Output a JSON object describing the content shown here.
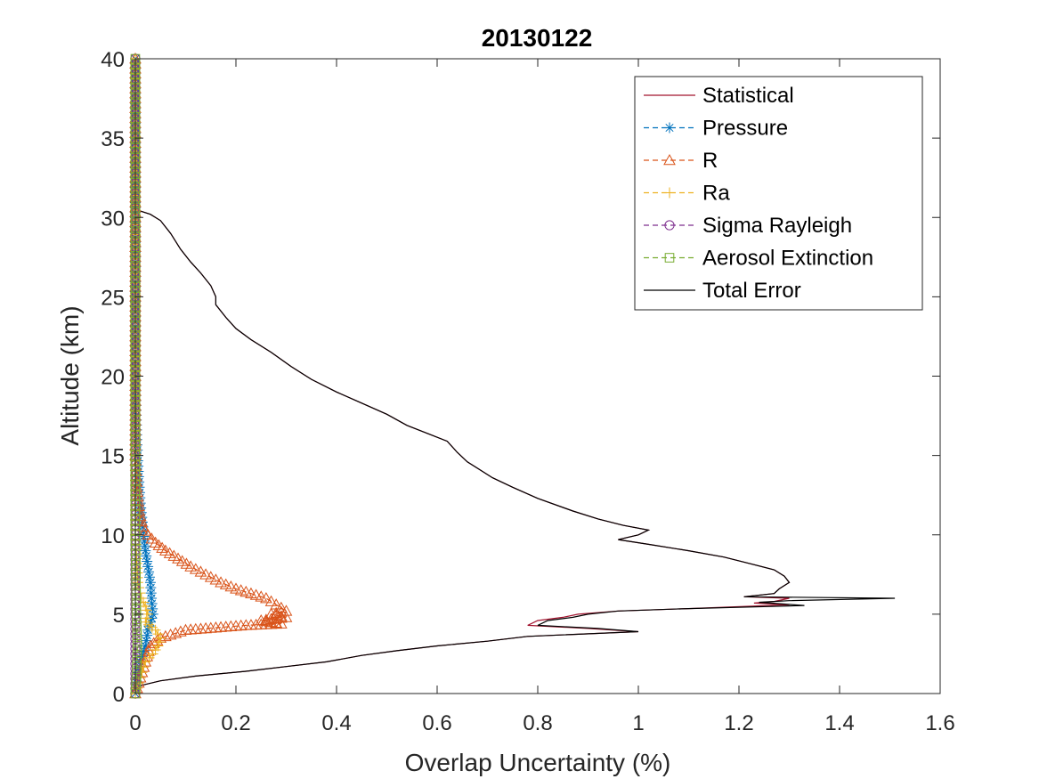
{
  "chart_data": {
    "type": "line",
    "title": "20130122",
    "xlabel": "Overlap Uncertainty (%)",
    "ylabel": "Altitude (km)",
    "xlim": [
      0,
      1.6
    ],
    "ylim": [
      0,
      40
    ],
    "xticks": [
      0,
      0.2,
      0.4,
      0.6,
      0.8,
      1,
      1.2,
      1.4,
      1.6
    ],
    "xtick_labels": [
      "0",
      "0.2",
      "0.4",
      "0.6",
      "0.8",
      "1",
      "1.2",
      "1.4",
      "1.6"
    ],
    "yticks": [
      0,
      5,
      10,
      15,
      20,
      25,
      30,
      35,
      40
    ],
    "ytick_labels": [
      "0",
      "5",
      "10",
      "15",
      "20",
      "25",
      "30",
      "35",
      "40"
    ],
    "grid": false,
    "legend_position": "top-right",
    "series": [
      {
        "name": "Statistical",
        "color": "#A2142F",
        "style": "solid",
        "marker": "none",
        "points": [
          [
            0,
            40
          ],
          [
            0,
            30.5
          ],
          [
            0.01,
            30.4
          ],
          [
            0.03,
            30.2
          ],
          [
            0.05,
            29.8
          ],
          [
            0.07,
            29
          ],
          [
            0.09,
            28
          ],
          [
            0.11,
            27.2
          ],
          [
            0.13,
            26.5
          ],
          [
            0.15,
            25.7
          ],
          [
            0.16,
            25
          ],
          [
            0.16,
            24.5
          ],
          [
            0.18,
            23.7
          ],
          [
            0.2,
            23
          ],
          [
            0.23,
            22.3
          ],
          [
            0.27,
            21.5
          ],
          [
            0.31,
            20.6
          ],
          [
            0.35,
            19.8
          ],
          [
            0.4,
            19
          ],
          [
            0.45,
            18.3
          ],
          [
            0.5,
            17.6
          ],
          [
            0.54,
            16.9
          ],
          [
            0.58,
            16.4
          ],
          [
            0.62,
            15.9
          ],
          [
            0.64,
            15.2
          ],
          [
            0.66,
            14.6
          ],
          [
            0.68,
            14.2
          ],
          [
            0.71,
            13.6
          ],
          [
            0.75,
            13
          ],
          [
            0.8,
            12.3
          ],
          [
            0.87,
            11.5
          ],
          [
            0.92,
            11
          ],
          [
            0.97,
            10.6
          ],
          [
            1.02,
            10.3
          ],
          [
            1,
            10
          ],
          [
            0.96,
            9.7
          ],
          [
            1.02,
            9.4
          ],
          [
            1.1,
            9
          ],
          [
            1.17,
            8.6
          ],
          [
            1.22,
            8.2
          ],
          [
            1.27,
            7.8
          ],
          [
            1.29,
            7.4
          ],
          [
            1.3,
            7
          ],
          [
            1.28,
            6.6
          ],
          [
            1.27,
            6.3
          ],
          [
            1.21,
            6.1
          ],
          [
            1.3,
            6
          ],
          [
            1.27,
            5.8
          ],
          [
            1.23,
            5.7
          ],
          [
            1.3,
            5.6
          ],
          [
            1.1,
            5.35
          ],
          [
            0.96,
            5.2
          ],
          [
            0.88,
            5
          ],
          [
            0.85,
            4.8
          ],
          [
            0.8,
            4.6
          ],
          [
            0.78,
            4.3
          ],
          [
            0.9,
            4.1
          ],
          [
            1,
            3.9
          ],
          [
            0.78,
            3.6
          ],
          [
            0.7,
            3.3
          ],
          [
            0.6,
            3
          ],
          [
            0.52,
            2.7
          ],
          [
            0.45,
            2.4
          ],
          [
            0.38,
            2
          ],
          [
            0.3,
            1.7
          ],
          [
            0.22,
            1.4
          ],
          [
            0.12,
            1.1
          ],
          [
            0.05,
            0.8
          ],
          [
            0.01,
            0.5
          ],
          [
            0,
            0
          ]
        ]
      },
      {
        "name": "Pressure",
        "color": "#0072BD",
        "style": "dashed",
        "marker": "asterisk",
        "points": [
          [
            0,
            40
          ],
          [
            0,
            30
          ],
          [
            0,
            20
          ],
          [
            0.003,
            16
          ],
          [
            0.006,
            14
          ],
          [
            0.01,
            12
          ],
          [
            0.015,
            10.5
          ],
          [
            0.02,
            9
          ],
          [
            0.025,
            8
          ],
          [
            0.03,
            7
          ],
          [
            0.032,
            6
          ],
          [
            0.035,
            5
          ],
          [
            0.03,
            4.5
          ],
          [
            0.025,
            4
          ],
          [
            0.02,
            3
          ],
          [
            0.01,
            2
          ],
          [
            0.005,
            1
          ],
          [
            0,
            0
          ]
        ]
      },
      {
        "name": "R",
        "color": "#D95319",
        "style": "dashed",
        "marker": "triangle",
        "points": [
          [
            0,
            40
          ],
          [
            0,
            30
          ],
          [
            0,
            20
          ],
          [
            0,
            15
          ],
          [
            0.003,
            13
          ],
          [
            0.008,
            11.5
          ],
          [
            0.015,
            10.5
          ],
          [
            0.025,
            10
          ],
          [
            0.04,
            9.5
          ],
          [
            0.06,
            9
          ],
          [
            0.085,
            8.5
          ],
          [
            0.11,
            8
          ],
          [
            0.14,
            7.5
          ],
          [
            0.17,
            7
          ],
          [
            0.2,
            6.6
          ],
          [
            0.23,
            6.3
          ],
          [
            0.26,
            6
          ],
          [
            0.28,
            5.6
          ],
          [
            0.3,
            5.2
          ],
          [
            0.27,
            5
          ],
          [
            0.3,
            4.8
          ],
          [
            0.25,
            4.6
          ],
          [
            0.29,
            4.4
          ],
          [
            0.22,
            4.3
          ],
          [
            0.1,
            4
          ],
          [
            0.05,
            3.5
          ],
          [
            0.03,
            3
          ],
          [
            0.02,
            2
          ],
          [
            0.01,
            1
          ],
          [
            0,
            0
          ]
        ]
      },
      {
        "name": "Ra",
        "color": "#EDB120",
        "style": "dashed",
        "marker": "plus",
        "points": [
          [
            0,
            40
          ],
          [
            0,
            20
          ],
          [
            0,
            10
          ],
          [
            0.005,
            7
          ],
          [
            0.012,
            6
          ],
          [
            0.02,
            5.5
          ],
          [
            0.025,
            5
          ],
          [
            0.02,
            4.5
          ],
          [
            0.04,
            4
          ],
          [
            0.05,
            3.5
          ],
          [
            0.045,
            3
          ],
          [
            0.035,
            2.5
          ],
          [
            0.02,
            2
          ],
          [
            0.01,
            1
          ],
          [
            0,
            0
          ]
        ]
      },
      {
        "name": "Sigma Rayleigh",
        "color": "#7E2F8E",
        "style": "dashed",
        "marker": "circle",
        "points": [
          [
            0,
            40
          ],
          [
            0,
            30
          ],
          [
            0,
            20
          ],
          [
            0,
            10
          ],
          [
            0,
            5
          ],
          [
            0,
            0
          ]
        ]
      },
      {
        "name": "Aerosol Extinction",
        "color": "#77AC30",
        "style": "dashed",
        "marker": "square",
        "points": [
          [
            0,
            40
          ],
          [
            0,
            30
          ],
          [
            0,
            20
          ],
          [
            0,
            10
          ],
          [
            0.002,
            5
          ],
          [
            0.004,
            3
          ],
          [
            0.002,
            1
          ],
          [
            0,
            0
          ]
        ]
      },
      {
        "name": "Total Error",
        "color": "#000000",
        "style": "solid",
        "marker": "none",
        "points": [
          [
            0,
            40
          ],
          [
            0,
            30.5
          ],
          [
            0.01,
            30.4
          ],
          [
            0.03,
            30.2
          ],
          [
            0.05,
            29.8
          ],
          [
            0.07,
            29
          ],
          [
            0.09,
            28
          ],
          [
            0.11,
            27.2
          ],
          [
            0.13,
            26.5
          ],
          [
            0.15,
            25.7
          ],
          [
            0.16,
            25
          ],
          [
            0.16,
            24.5
          ],
          [
            0.18,
            23.7
          ],
          [
            0.2,
            23
          ],
          [
            0.23,
            22.3
          ],
          [
            0.27,
            21.5
          ],
          [
            0.31,
            20.6
          ],
          [
            0.35,
            19.8
          ],
          [
            0.4,
            19
          ],
          [
            0.45,
            18.3
          ],
          [
            0.5,
            17.6
          ],
          [
            0.54,
            16.9
          ],
          [
            0.58,
            16.4
          ],
          [
            0.62,
            15.9
          ],
          [
            0.64,
            15.2
          ],
          [
            0.66,
            14.6
          ],
          [
            0.68,
            14.2
          ],
          [
            0.71,
            13.6
          ],
          [
            0.75,
            13
          ],
          [
            0.8,
            12.3
          ],
          [
            0.87,
            11.5
          ],
          [
            0.92,
            11
          ],
          [
            0.97,
            10.6
          ],
          [
            1.02,
            10.3
          ],
          [
            1,
            10
          ],
          [
            0.96,
            9.7
          ],
          [
            1.02,
            9.4
          ],
          [
            1.1,
            9
          ],
          [
            1.17,
            8.6
          ],
          [
            1.22,
            8.2
          ],
          [
            1.27,
            7.8
          ],
          [
            1.29,
            7.4
          ],
          [
            1.3,
            7
          ],
          [
            1.28,
            6.6
          ],
          [
            1.27,
            6.3
          ],
          [
            1.21,
            6.1
          ],
          [
            1.51,
            6
          ],
          [
            1.3,
            5.85
          ],
          [
            1.24,
            5.75
          ],
          [
            1.33,
            5.55
          ],
          [
            1.1,
            5.35
          ],
          [
            0.96,
            5.2
          ],
          [
            0.9,
            5
          ],
          [
            0.87,
            4.8
          ],
          [
            0.82,
            4.6
          ],
          [
            0.8,
            4.3
          ],
          [
            0.92,
            4.1
          ],
          [
            1,
            3.9
          ],
          [
            0.78,
            3.6
          ],
          [
            0.7,
            3.3
          ],
          [
            0.6,
            3
          ],
          [
            0.52,
            2.7
          ],
          [
            0.45,
            2.4
          ],
          [
            0.38,
            2
          ],
          [
            0.3,
            1.7
          ],
          [
            0.22,
            1.4
          ],
          [
            0.12,
            1.1
          ],
          [
            0.05,
            0.8
          ],
          [
            0.01,
            0.5
          ],
          [
            0,
            0
          ]
        ]
      }
    ]
  }
}
